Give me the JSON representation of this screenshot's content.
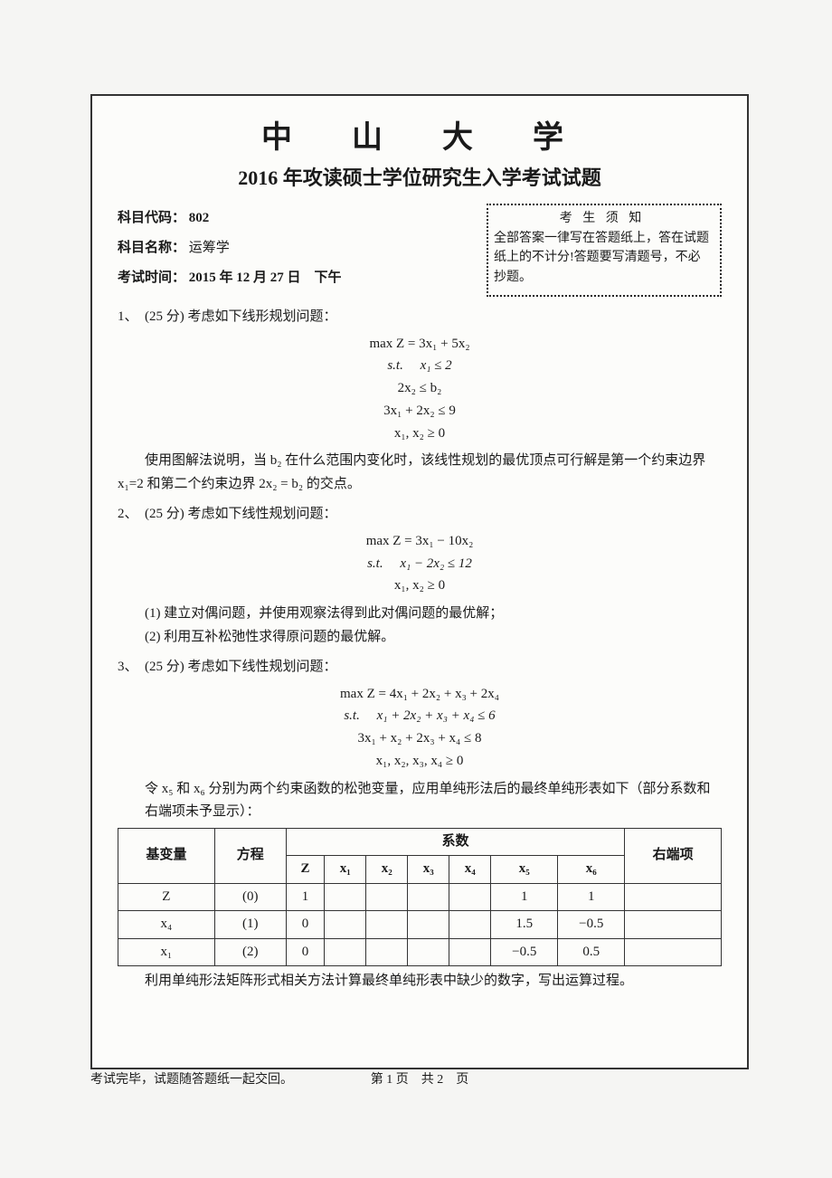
{
  "university": "中　山　大　学",
  "exam_title": "2016 年攻读硕士学位研究生入学考试试题",
  "header": {
    "code_label": "科目代码：",
    "code": "802",
    "name_label": "科目名称：",
    "name": "运筹学",
    "time_label": "考试时间：",
    "time": "2015 年 12 月 27 日　下午"
  },
  "notice": {
    "title": "考 生 须 知",
    "body": "全部答案一律写在答题纸上，答在试题纸上的不计分!答题要写清题号，不必抄题。"
  },
  "q1": {
    "head": "1、　(25 分) 考虑如下线形规划问题：",
    "f1": "max  Z = 3x₁ + 5x₂",
    "f2": "s.t.　 x₁ ≤ 2",
    "f3": "2x₂ ≤ b₂",
    "f4": "3x₁ + 2x₂ ≤ 9",
    "f5": "x₁, x₂ ≥ 0",
    "text": "使用图解法说明，当 b₂ 在什么范围内变化时，该线性规划的最优顶点可行解是第一个约束边界 x₁=2 和第二个约束边界 2x₂ = b₂ 的交点。"
  },
  "q2": {
    "head": "2、　(25 分) 考虑如下线性规划问题：",
    "f1": "max  Z = 3x₁ − 10x₂",
    "f2": "s.t.　 x₁ − 2x₂ ≤ 12",
    "f3": "x₁, x₂ ≥ 0",
    "s1": "(1) 建立对偶问题，并使用观察法得到此对偶问题的最优解；",
    "s2": "(2) 利用互补松弛性求得原问题的最优解。"
  },
  "q3": {
    "head": "3、　(25 分) 考虑如下线性规划问题：",
    "f1": "max  Z = 4x₁ + 2x₂ + x₃ + 2x₄",
    "f2": "s.t.　 x₁ + 2x₂ + x₃ + x₄ ≤ 6",
    "f3": "3x₁ + x₂ + 2x₃ + x₄ ≤ 8",
    "f4": "x₁, x₂, x₃, x₄ ≥ 0",
    "pretable": "令 x₅ 和 x₆ 分别为两个约束函数的松弛变量，应用单纯形法后的最终单纯形表如下（部分系数和右端项未予显示）：",
    "after": "利用单纯形法矩阵形式相关方法计算最终单纯形表中缺少的数字，写出运算过程。"
  },
  "table": {
    "h_basic": "基变量",
    "h_eq": "方程",
    "h_coef": "系数",
    "h_rhs": "右端项",
    "cols": [
      "Z",
      "x₁",
      "x₂",
      "x₃",
      "x₄",
      "x₅",
      "x₆"
    ],
    "rows": [
      {
        "basic": "Z",
        "eq": "(0)",
        "Z": "1",
        "x5": "1",
        "x6": "1"
      },
      {
        "basic": "x₄",
        "eq": "(1)",
        "Z": "0",
        "x5": "1.5",
        "x6": "−0.5"
      },
      {
        "basic": "x₁",
        "eq": "(2)",
        "Z": "0",
        "x5": "−0.5",
        "x6": "0.5"
      }
    ]
  },
  "footer": {
    "left": "考试完毕，试题随答题纸一起交回。",
    "center": "第 1 页　共 2　页"
  }
}
